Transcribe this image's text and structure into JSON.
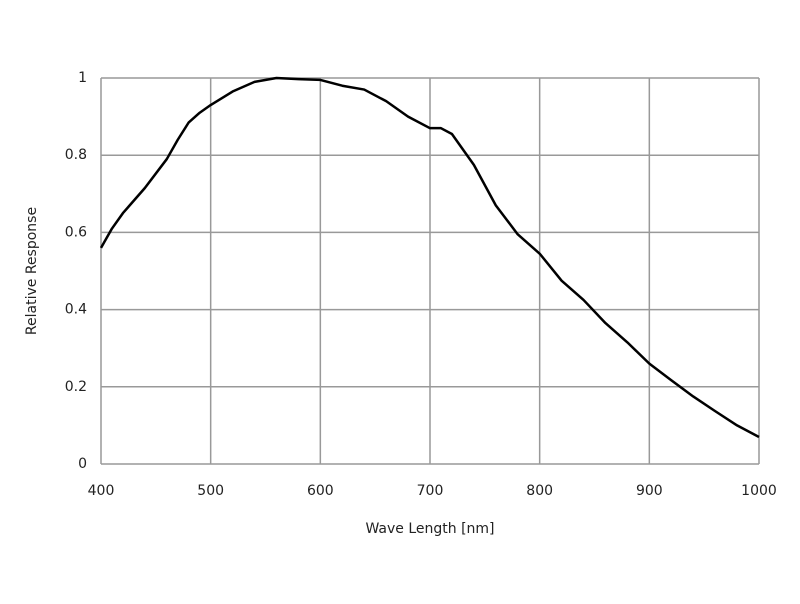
{
  "chart_data": {
    "type": "line",
    "xlabel": "Wave Length [nm]",
    "ylabel": "Relative Response",
    "x": [
      400,
      410,
      420,
      440,
      460,
      470,
      480,
      490,
      500,
      520,
      540,
      560,
      580,
      600,
      620,
      640,
      660,
      680,
      700,
      710,
      720,
      740,
      760,
      780,
      800,
      820,
      840,
      860,
      880,
      900,
      920,
      940,
      960,
      980,
      1000
    ],
    "series": [
      {
        "color": "#000000",
        "values": [
          0.56,
          0.61,
          0.65,
          0.715,
          0.79,
          0.84,
          0.885,
          0.91,
          0.93,
          0.965,
          0.99,
          1.0,
          0.997,
          0.995,
          0.98,
          0.97,
          0.94,
          0.9,
          0.87,
          0.87,
          0.855,
          0.775,
          0.67,
          0.595,
          0.545,
          0.475,
          0.425,
          0.365,
          0.315,
          0.26,
          0.217,
          0.175,
          0.137,
          0.1,
          0.07
        ]
      }
    ],
    "xlim": [
      400,
      1000
    ],
    "xticks": [
      400,
      500,
      600,
      700,
      800,
      900,
      1000
    ],
    "ylim": [
      0,
      1
    ],
    "yticks": [
      0,
      0.2,
      0.4,
      0.6,
      0.8,
      1
    ],
    "grid": true
  }
}
